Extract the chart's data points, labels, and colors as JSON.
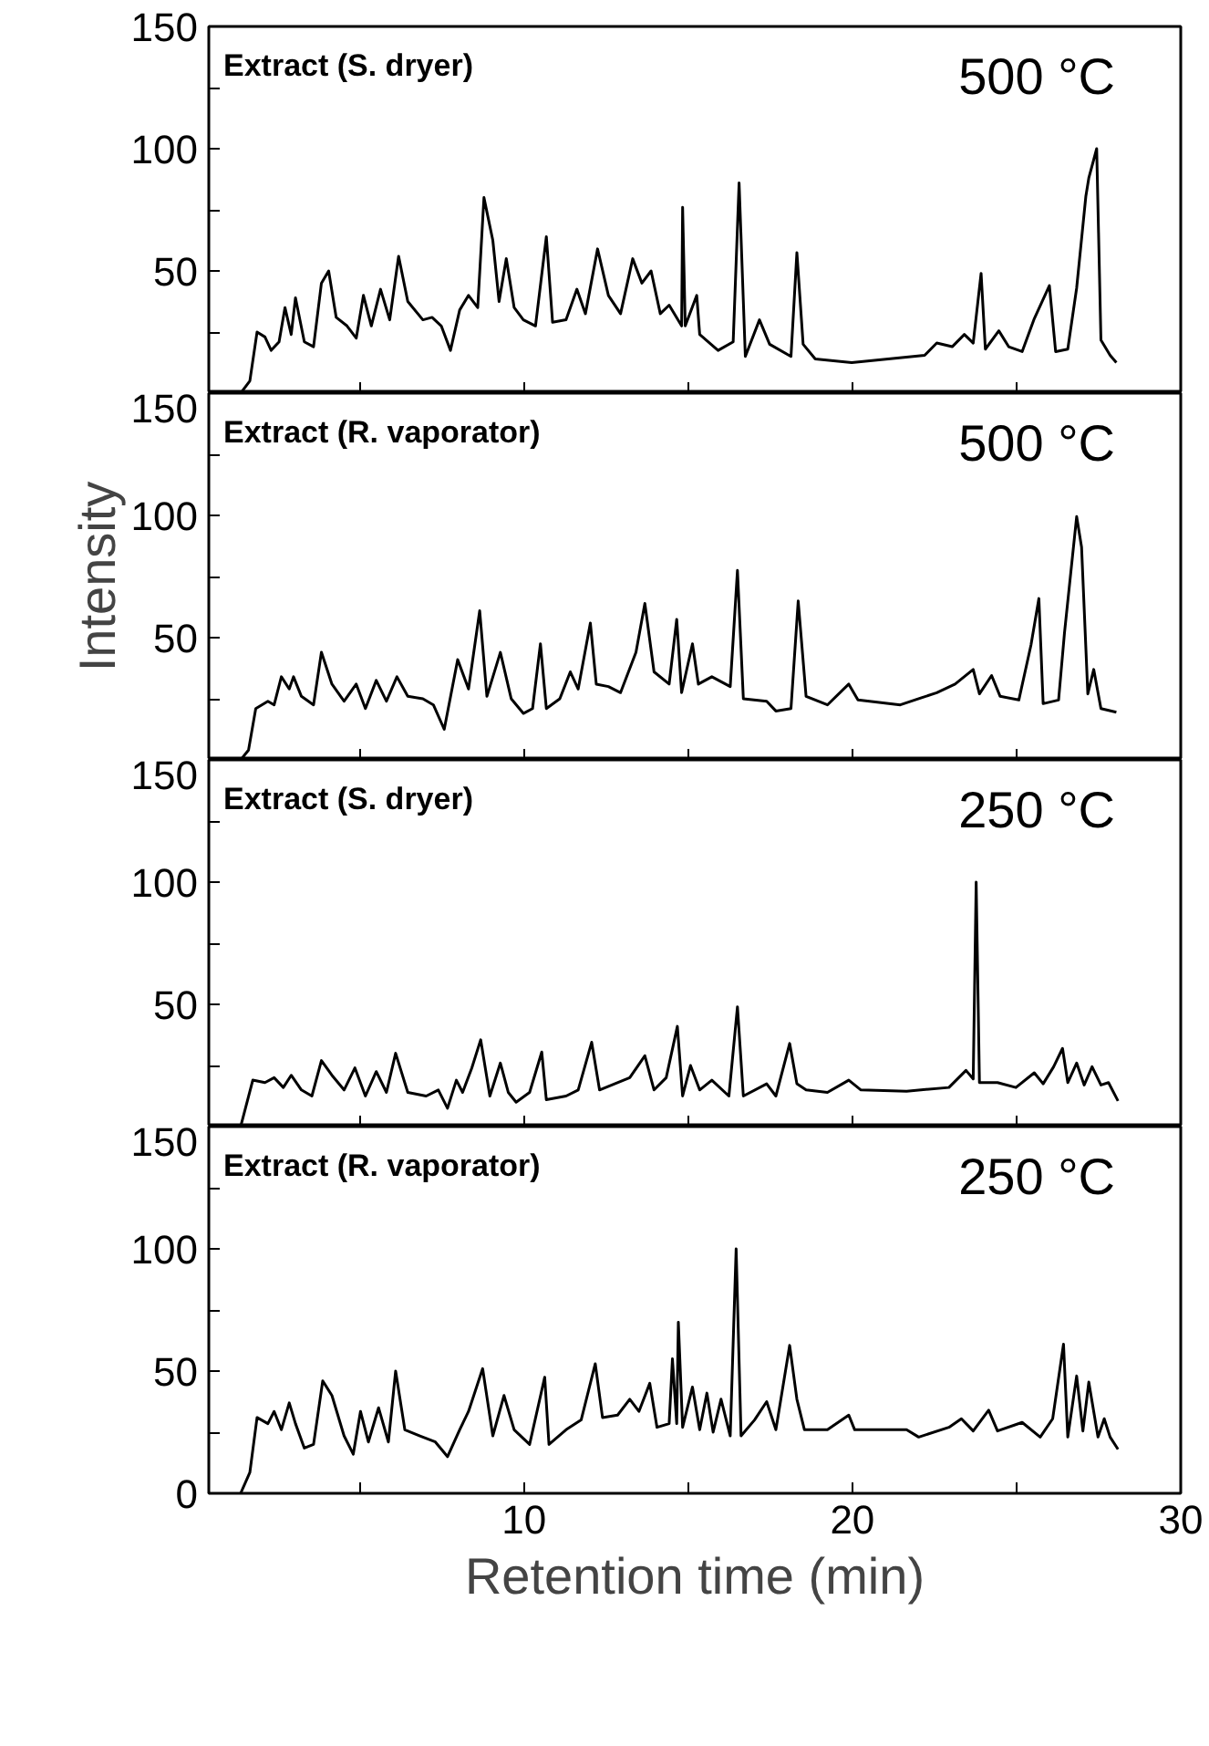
{
  "chart_data": [
    {
      "type": "line",
      "annotations": [
        "Extract (S. dryer)",
        "500 °C"
      ],
      "color": "#000000",
      "grid": false,
      "tick_labels": "y",
      "xlim": [
        0.4,
        30
      ],
      "xticks": [
        {
          "value": 5,
          "label": null
        },
        {
          "value": 10,
          "label": null
        },
        {
          "value": 15,
          "label": null
        },
        {
          "value": 20,
          "label": null
        },
        {
          "value": 25,
          "label": null
        },
        {
          "value": 30,
          "label": null
        }
      ],
      "ylim": [
        0,
        150
      ],
      "yticks": [
        {
          "value": 0,
          "label": null
        },
        {
          "value": 25,
          "label": null
        },
        50,
        {
          "value": 75,
          "label": null
        },
        100,
        {
          "value": 125,
          "label": null
        },
        150
      ],
      "x": [
        1.37,
        1.65,
        1.87,
        2.11,
        2.3,
        2.54,
        2.72,
        2.91,
        3.04,
        3.31,
        3.59,
        3.83,
        4.05,
        4.28,
        4.61,
        4.89,
        5.11,
        5.35,
        5.63,
        5.91,
        6.18,
        6.46,
        6.92,
        7.2,
        7.48,
        7.76,
        8.04,
        8.31,
        8.59,
        8.78,
        9.05,
        9.24,
        9.46,
        9.7,
        9.98,
        10.35,
        10.68,
        10.87,
        11.28,
        11.61,
        11.87,
        12.24,
        12.57,
        12.94,
        13.31,
        13.59,
        13.87,
        14.15,
        14.42,
        14.8,
        14.83,
        14.91,
        15.26,
        15.35,
        15.91,
        16.37,
        16.55,
        16.74,
        17.17,
        17.48,
        18.13,
        18.31,
        18.5,
        18.87,
        19.98,
        21.09,
        22.2,
        22.57,
        23.04,
        23.41,
        23.68,
        23.92,
        24.05,
        24.46,
        24.76,
        25.17,
        25.54,
        26.0,
        26.19,
        26.56,
        26.83,
        27.11,
        27.2,
        27.44,
        27.57,
        27.85,
        28.04
      ],
      "values": [
        0,
        5,
        25,
        23,
        17.5,
        21,
        35,
        24,
        39,
        21,
        19,
        45,
        50,
        31,
        27.5,
        22.5,
        40,
        27.5,
        42.5,
        30,
        56,
        37.5,
        30,
        31,
        27.5,
        17.5,
        34,
        40,
        35,
        80,
        62.5,
        37.5,
        55,
        35,
        30,
        27.5,
        64,
        29,
        30,
        42.5,
        32.5,
        59,
        40,
        32.5,
        55,
        45,
        50,
        32.5,
        36,
        27.5,
        76,
        27.5,
        40,
        24,
        17.5,
        21,
        86,
        15,
        30,
        20,
        15,
        57.5,
        20,
        14,
        12.5,
        14,
        15.5,
        20.5,
        19,
        24,
        20.5,
        49,
        18,
        25.5,
        19,
        17,
        30.5,
        44,
        17,
        18,
        43,
        80.5,
        88,
        100,
        21.75,
        15.5,
        12.5
      ]
    },
    {
      "type": "line",
      "annotations": [
        "Extract (R. vaporator)",
        "500 °C"
      ],
      "ylabel": "Intensity",
      "color": "#000000",
      "grid": false,
      "tick_labels": "y",
      "xlim": [
        0.4,
        30
      ],
      "xticks": [
        {
          "value": 5,
          "label": null
        },
        {
          "value": 10,
          "label": null
        },
        {
          "value": 15,
          "label": null
        },
        {
          "value": 20,
          "label": null
        },
        {
          "value": 25,
          "label": null
        },
        {
          "value": 30,
          "label": null
        }
      ],
      "ylim": [
        0,
        150
      ],
      "yticks": [
        {
          "value": 0,
          "label": null
        },
        {
          "value": 25,
          "label": null
        },
        50,
        {
          "value": 75,
          "label": null
        },
        100,
        {
          "value": 125,
          "label": null
        },
        150
      ],
      "x": [
        1.37,
        1.61,
        1.83,
        2.2,
        2.39,
        2.61,
        2.85,
        2.98,
        3.22,
        3.59,
        3.83,
        4.15,
        4.52,
        4.89,
        5.17,
        5.5,
        5.81,
        6.13,
        6.46,
        6.92,
        7.24,
        7.57,
        7.98,
        8.31,
        8.65,
        8.87,
        9.28,
        9.61,
        9.98,
        10.26,
        10.5,
        10.68,
        11.09,
        11.41,
        11.65,
        12.02,
        12.2,
        12.57,
        12.94,
        13.41,
        13.68,
        13.96,
        14.42,
        14.65,
        14.8,
        15.13,
        15.31,
        15.72,
        16.28,
        16.5,
        16.68,
        17.39,
        17.67,
        18.13,
        18.35,
        18.59,
        19.24,
        19.89,
        20.17,
        21.46,
        22.57,
        23.13,
        23.68,
        23.87,
        24.24,
        24.5,
        25.07,
        25.44,
        25.68,
        25.81,
        26.28,
        26.46,
        26.83,
        26.98,
        27.17,
        27.35,
        27.57,
        28.04
      ],
      "values": [
        0,
        4,
        21,
        24,
        22.5,
        34,
        29,
        34,
        26,
        22.5,
        44,
        31,
        24,
        31,
        21,
        32.5,
        24,
        34,
        26,
        25,
        22.5,
        12.5,
        41,
        29,
        61,
        26,
        44,
        25,
        19,
        21,
        47.5,
        21,
        25,
        36,
        29,
        56,
        31,
        30,
        27.5,
        44,
        64,
        36,
        31,
        57.5,
        27.5,
        47.5,
        31,
        34,
        30,
        77.5,
        25,
        24,
        20,
        21,
        65,
        26,
        22.5,
        31,
        24.5,
        22.5,
        27.5,
        31,
        37,
        27,
        34.5,
        26,
        24.5,
        47,
        66,
        23,
        24.5,
        52,
        99.5,
        87,
        27,
        37,
        21,
        19.5
      ]
    },
    {
      "type": "line",
      "annotations": [
        "Extract (S. dryer)",
        "250 °C"
      ],
      "color": "#000000",
      "grid": false,
      "tick_labels": "y",
      "xlim": [
        0.4,
        30
      ],
      "xticks": [
        {
          "value": 5,
          "label": null
        },
        {
          "value": 10,
          "label": null
        },
        {
          "value": 15,
          "label": null
        },
        {
          "value": 20,
          "label": null
        },
        {
          "value": 25,
          "label": null
        },
        {
          "value": 30,
          "label": null
        }
      ],
      "ylim": [
        0,
        150
      ],
      "yticks": [
        {
          "value": 0,
          "label": null
        },
        {
          "value": 25,
          "label": null
        },
        50,
        {
          "value": 75,
          "label": null
        },
        100,
        {
          "value": 125,
          "label": null
        },
        150
      ],
      "x": [
        1.37,
        1.74,
        2.11,
        2.39,
        2.67,
        2.91,
        3.22,
        3.54,
        3.83,
        4.15,
        4.52,
        4.85,
        5.17,
        5.5,
        5.81,
        6.09,
        6.46,
        7.02,
        7.39,
        7.67,
        7.94,
        8.13,
        8.41,
        8.68,
        8.96,
        9.28,
        9.52,
        9.76,
        10.17,
        10.54,
        10.68,
        11.28,
        11.65,
        12.06,
        12.3,
        12.76,
        13.22,
        13.68,
        13.96,
        14.33,
        14.67,
        14.83,
        15.07,
        15.35,
        15.72,
        16.24,
        16.5,
        16.68,
        17.39,
        17.67,
        18.09,
        18.31,
        18.59,
        19.24,
        19.89,
        20.26,
        21.65,
        22.94,
        23.46,
        23.68,
        23.77,
        23.87,
        24.42,
        24.98,
        25.54,
        25.81,
        26.13,
        26.4,
        26.56,
        26.83,
        27.06,
        27.3,
        27.57,
        27.8,
        28.09
      ],
      "values": [
        0,
        19,
        18,
        20,
        16,
        21,
        15,
        12.5,
        27,
        21,
        15,
        24,
        12.5,
        22.5,
        14,
        30,
        14,
        12.5,
        15,
        7.5,
        19,
        14,
        24,
        35.5,
        12.5,
        26,
        14,
        10,
        14,
        30.5,
        11,
        12.5,
        15,
        34.5,
        15,
        17.5,
        20,
        29,
        15,
        20,
        41,
        12.5,
        25,
        15,
        19,
        12.5,
        49,
        12.5,
        17.5,
        12.5,
        34,
        17.5,
        15,
        14,
        19,
        15,
        14.5,
        16,
        23,
        19.5,
        100,
        18,
        18,
        16,
        22,
        17.5,
        24.5,
        32,
        18,
        26,
        17,
        24.5,
        17,
        18,
        10.5
      ]
    },
    {
      "type": "line",
      "annotations": [
        "Extract (R. vaporator)",
        "250 °C"
      ],
      "xlabel": "Retention time (min)",
      "color": "#000000",
      "grid": false,
      "xlim": [
        0.4,
        30
      ],
      "xticks": [
        {
          "value": 5,
          "label": null
        },
        10,
        {
          "value": 15,
          "label": null
        },
        20,
        {
          "value": 25,
          "label": null
        },
        30
      ],
      "ylim": [
        0,
        150
      ],
      "yticks": [
        0,
        {
          "value": 25,
          "label": null
        },
        50,
        {
          "value": 75,
          "label": null
        },
        100,
        {
          "value": 125,
          "label": null
        },
        150
      ],
      "x": [
        1.37,
        1.65,
        1.87,
        2.2,
        2.39,
        2.61,
        2.85,
        3.04,
        3.31,
        3.59,
        3.87,
        4.15,
        4.52,
        4.8,
        5.02,
        5.26,
        5.57,
        5.87,
        6.09,
        6.37,
        6.83,
        7.3,
        7.67,
        8.04,
        8.31,
        8.74,
        9.05,
        9.39,
        9.7,
        10.17,
        10.63,
        10.76,
        11.28,
        11.74,
        12.17,
        12.39,
        12.85,
        13.22,
        13.5,
        13.83,
        14.05,
        14.42,
        14.52,
        14.65,
        14.7,
        14.83,
        15.13,
        15.35,
        15.57,
        15.76,
        16.0,
        16.28,
        16.46,
        16.61,
        17.02,
        17.39,
        17.67,
        18.09,
        18.31,
        18.54,
        19.24,
        19.89,
        20.07,
        21.65,
        22.02,
        22.94,
        23.32,
        23.68,
        24.15,
        24.42,
        25.17,
        25.72,
        26.1,
        26.43,
        26.56,
        26.83,
        27.02,
        27.2,
        27.48,
        27.67,
        27.85,
        28.09
      ],
      "values": [
        0,
        8.5,
        31,
        28.5,
        33.5,
        26,
        37,
        28.5,
        18.5,
        20,
        46,
        40,
        23.5,
        16,
        33.5,
        21,
        35,
        21,
        50,
        26,
        23.5,
        21,
        15,
        26,
        33.5,
        51,
        23.5,
        40,
        26,
        20,
        47.5,
        20,
        26,
        30,
        53,
        31,
        32,
        38.5,
        33.5,
        45,
        27,
        28.5,
        55,
        28.5,
        70,
        27,
        43.5,
        26,
        41,
        25,
        38.5,
        23.5,
        100,
        23.5,
        30,
        37.5,
        26,
        60.5,
        38.5,
        26,
        26,
        32,
        26,
        26,
        23,
        27,
        30.5,
        25.5,
        34,
        25.5,
        29,
        23,
        30.5,
        61,
        23,
        48,
        25.5,
        45.5,
        23,
        30.5,
        23,
        18
      ]
    }
  ]
}
